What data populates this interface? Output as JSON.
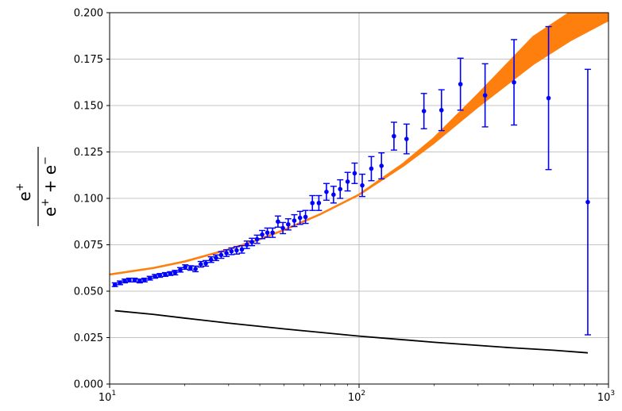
{
  "chart_data": {
    "type": "scatter",
    "title": "",
    "xlabel": "",
    "ylabel_parts": {
      "numerator": "e",
      "numerator_sup": "+",
      "denominator_1": "e",
      "denominator_1_sup": "+",
      "denominator_plus": " + ",
      "denominator_2": "e",
      "denominator_2_sup": "−"
    },
    "xscale": "log",
    "xlim": [
      10,
      1000
    ],
    "ylim": [
      0.0,
      0.2
    ],
    "grid": true,
    "x_ticks": [
      {
        "value": 10,
        "base": "10",
        "exp": "1"
      },
      {
        "value": 100,
        "base": "10",
        "exp": "2"
      },
      {
        "value": 1000,
        "base": "10",
        "exp": "3"
      }
    ],
    "y_ticks": [
      {
        "value": 0.0,
        "label": "0.000"
      },
      {
        "value": 0.025,
        "label": "0.025"
      },
      {
        "value": 0.05,
        "label": "0.050"
      },
      {
        "value": 0.075,
        "label": "0.075"
      },
      {
        "value": 0.1,
        "label": "0.100"
      },
      {
        "value": 0.125,
        "label": "0.125"
      },
      {
        "value": 0.15,
        "label": "0.150"
      },
      {
        "value": 0.175,
        "label": "0.175"
      },
      {
        "value": 0.2,
        "label": "0.200"
      }
    ],
    "series": [
      {
        "kind": "points_with_errorbars",
        "color": "#0000ff",
        "x": [
          10.5,
          11.0,
          11.5,
          12.0,
          12.6,
          13.2,
          13.8,
          14.5,
          15.2,
          15.9,
          16.7,
          17.5,
          18.3,
          19.2,
          20.1,
          21.1,
          22.1,
          23.2,
          24.3,
          25.5,
          26.7,
          28.0,
          29.4,
          30.8,
          32.3,
          33.9,
          35.5,
          37.2,
          39.0,
          40.9,
          42.9,
          45.0,
          47.3,
          49.5,
          52.0,
          55.0,
          58.0,
          61.0,
          65.0,
          69.0,
          74.0,
          79.0,
          84.0,
          90.0,
          96.0,
          103.0,
          112.0,
          123.0,
          138.0,
          155.0,
          182.0,
          214.0,
          255.0,
          320.0,
          418.0,
          575.0,
          826.0
        ],
        "y": [
          0.0535,
          0.0545,
          0.0555,
          0.056,
          0.056,
          0.0555,
          0.056,
          0.057,
          0.058,
          0.0585,
          0.059,
          0.0595,
          0.06,
          0.0615,
          0.063,
          0.0625,
          0.062,
          0.0645,
          0.065,
          0.067,
          0.068,
          0.0695,
          0.0705,
          0.0715,
          0.072,
          0.0725,
          0.075,
          0.0765,
          0.078,
          0.0805,
          0.0815,
          0.0815,
          0.0875,
          0.084,
          0.086,
          0.088,
          0.0895,
          0.09,
          0.0975,
          0.0975,
          0.1035,
          0.102,
          0.105,
          0.109,
          0.1135,
          0.107,
          0.116,
          0.1175,
          0.1335,
          0.132,
          0.147,
          0.1475,
          0.1615,
          0.1555,
          0.1625,
          0.154,
          0.098
        ],
        "yerr": [
          0.001,
          0.001,
          0.001,
          0.001,
          0.001,
          0.001,
          0.001,
          0.001,
          0.001,
          0.001,
          0.001,
          0.001,
          0.0012,
          0.0012,
          0.0012,
          0.0012,
          0.0015,
          0.0015,
          0.0015,
          0.0015,
          0.0015,
          0.0018,
          0.0018,
          0.0018,
          0.002,
          0.002,
          0.002,
          0.002,
          0.0022,
          0.0022,
          0.0025,
          0.0025,
          0.003,
          0.003,
          0.003,
          0.0032,
          0.0035,
          0.0035,
          0.004,
          0.004,
          0.0045,
          0.0045,
          0.005,
          0.005,
          0.0055,
          0.006,
          0.0065,
          0.007,
          0.0075,
          0.008,
          0.0095,
          0.011,
          0.014,
          0.017,
          0.023,
          0.0385,
          0.0715
        ]
      },
      {
        "kind": "band",
        "color": "#ff7f0e",
        "x": [
          10,
          15,
          20,
          30,
          40,
          50,
          70,
          100,
          150,
          200,
          300,
          500,
          700,
          1000
        ],
        "lower": [
          0.059,
          0.0625,
          0.066,
          0.0725,
          0.078,
          0.083,
          0.0915,
          0.102,
          0.1175,
          0.13,
          0.1495,
          0.1725,
          0.185,
          0.196
        ],
        "upper": [
          0.059,
          0.0625,
          0.066,
          0.0725,
          0.078,
          0.083,
          0.0915,
          0.102,
          0.1185,
          0.1325,
          0.156,
          0.187,
          0.2,
          0.2
        ]
      },
      {
        "kind": "line",
        "color": "#000000",
        "x": [
          10.5,
          15,
          20,
          30,
          50,
          100,
          200,
          400,
          600,
          826
        ],
        "y": [
          0.0395,
          0.0375,
          0.0355,
          0.0328,
          0.0297,
          0.0258,
          0.0225,
          0.0196,
          0.0182,
          0.0168
        ]
      }
    ]
  }
}
